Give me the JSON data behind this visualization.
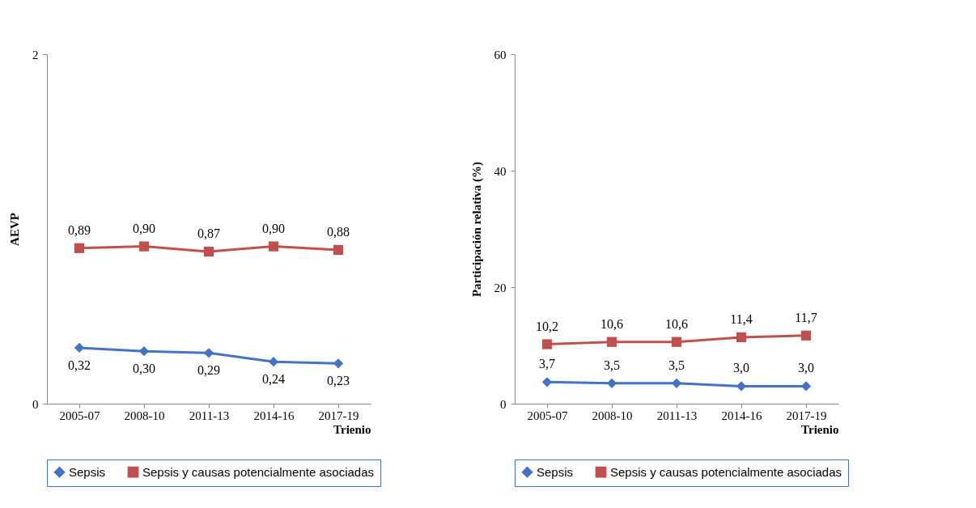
{
  "chart_data": [
    {
      "type": "line",
      "categories": [
        "2005-07",
        "2008-10",
        "2011-13",
        "2014-16",
        "2017-19"
      ],
      "xlabel": "Trienio",
      "ylabel": "AEVP",
      "ylim": [
        0,
        2
      ],
      "yticks": [
        0,
        2
      ],
      "grid": false,
      "legend": "bottom",
      "series": [
        {
          "name": "Sepsis",
          "color": "#4472c4",
          "marker": "diamond",
          "values": [
            0.32,
            0.3,
            0.29,
            0.24,
            0.23
          ],
          "value_labels": [
            "0,32",
            "0,30",
            "0,29",
            "0,24",
            "0,23"
          ]
        },
        {
          "name": "Sepsis y causas potencialmente asociadas",
          "color": "#c0504d",
          "marker": "square",
          "values": [
            0.89,
            0.9,
            0.87,
            0.9,
            0.88
          ],
          "value_labels": [
            "0,89",
            "0,90",
            "0,87",
            "0,90",
            "0,88"
          ]
        }
      ]
    },
    {
      "type": "line",
      "categories": [
        "2005-07",
        "2008-10",
        "2011-13",
        "2014-16",
        "2017-19"
      ],
      "xlabel": "Trienio",
      "ylabel": "Participación relativa  (%)",
      "ylim": [
        0,
        60
      ],
      "yticks": [
        0,
        20,
        40,
        60
      ],
      "grid": false,
      "legend": "bottom",
      "series": [
        {
          "name": "Sepsis",
          "color": "#4472c4",
          "marker": "diamond",
          "values": [
            3.7,
            3.5,
            3.5,
            3.0,
            3.0
          ],
          "value_labels": [
            "3,7",
            "3,5",
            "3,5",
            "3,0",
            "3,0"
          ]
        },
        {
          "name": "Sepsis y causas potencialmente asociadas",
          "color": "#c0504d",
          "marker": "square",
          "values": [
            10.2,
            10.6,
            10.6,
            11.4,
            11.7
          ],
          "value_labels": [
            "10,2",
            "10,6",
            "10,6",
            "11,4",
            "11,7"
          ]
        }
      ]
    }
  ]
}
